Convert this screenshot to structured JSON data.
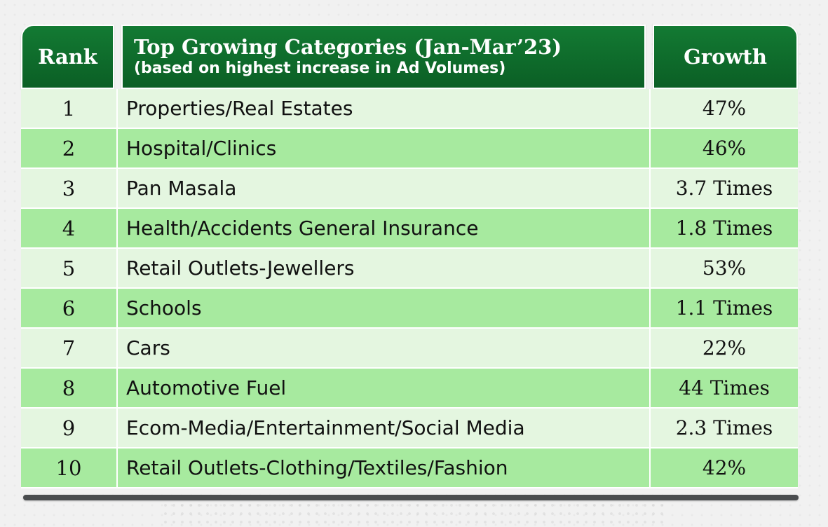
{
  "header": {
    "rank": "Rank",
    "title": "Top Growing Categories (Jan-Mar’23)",
    "subtitle": "(based on highest increase in Ad Volumes)",
    "growth": "Growth"
  },
  "rows": [
    {
      "rank": "1",
      "category": "Properties/Real Estates",
      "growth": "47%"
    },
    {
      "rank": "2",
      "category": "Hospital/Clinics",
      "growth": "46%"
    },
    {
      "rank": "3",
      "category": "Pan Masala",
      "growth": "3.7 Times"
    },
    {
      "rank": "4",
      "category": "Health/Accidents General Insurance",
      "growth": "1.8 Times"
    },
    {
      "rank": "5",
      "category": "Retail Outlets-Jewellers",
      "growth": "53%"
    },
    {
      "rank": "6",
      "category": "Schools",
      "growth": "1.1 Times"
    },
    {
      "rank": "7",
      "category": "Cars",
      "growth": "22%"
    },
    {
      "rank": "8",
      "category": "Automotive Fuel",
      "growth": "44 Times"
    },
    {
      "rank": "9",
      "category": "Ecom-Media/Entertainment/Social Media",
      "growth": "2.3 Times"
    },
    {
      "rank": "10",
      "category": "Retail Outlets-Clothing/Textiles/Fashion",
      "growth": "42%"
    }
  ],
  "colors": {
    "header_green": "#0f6f2d",
    "row_light": "#e4f6e0",
    "row_dark": "#a7ea9f",
    "background": "#f1f1f1",
    "bottom_bar": "#4a4d4f"
  }
}
